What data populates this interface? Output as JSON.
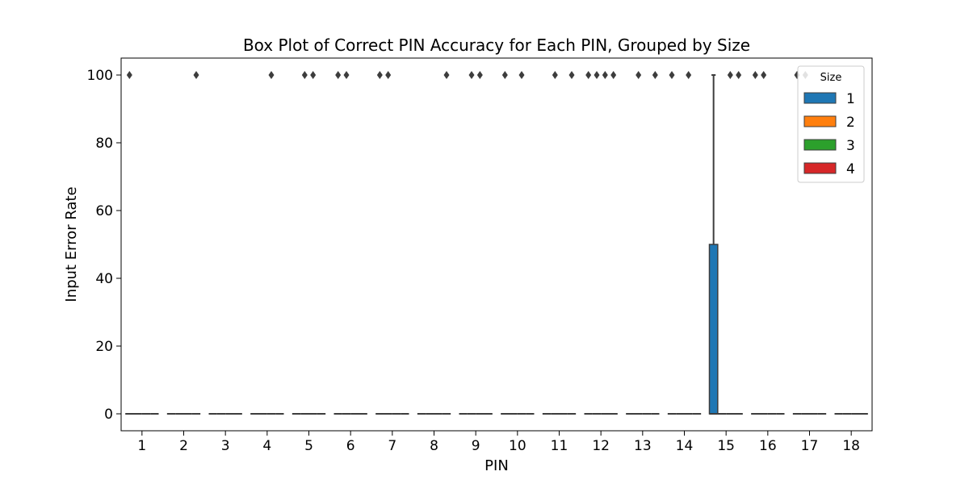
{
  "chart_data": {
    "type": "box",
    "title": "Box Plot of Correct PIN Accuracy for Each PIN, Grouped by Size",
    "xlabel": "PIN",
    "ylabel": "Input Error Rate",
    "categories": [
      "1",
      "2",
      "3",
      "4",
      "5",
      "6",
      "7",
      "8",
      "9",
      "10",
      "11",
      "12",
      "13",
      "14",
      "15",
      "16",
      "17",
      "18"
    ],
    "ylim": [
      -5,
      105
    ],
    "yticks": [
      0,
      20,
      40,
      60,
      80,
      100
    ],
    "legend": {
      "title": "Size",
      "position": "top-right",
      "entries": [
        {
          "label": "1",
          "color": "#1f77b4"
        },
        {
          "label": "2",
          "color": "#ff7f0e"
        },
        {
          "label": "3",
          "color": "#2ca02c"
        },
        {
          "label": "4",
          "color": "#d62728"
        }
      ]
    },
    "boxes": [
      {
        "pin": "15",
        "size": "1",
        "q1": 0,
        "median": 0,
        "q3": 50,
        "whisker_low": 0,
        "whisker_high": 100
      }
    ],
    "default_box": {
      "q1": 0,
      "median": 0,
      "q3": 0
    },
    "outliers": [
      {
        "pin": "1",
        "size": "1",
        "value": 100
      },
      {
        "pin": "2",
        "size": "4",
        "value": 100
      },
      {
        "pin": "4",
        "size": "3",
        "value": 100
      },
      {
        "pin": "5",
        "size": "2",
        "value": 100
      },
      {
        "pin": "5",
        "size": "3",
        "value": 100
      },
      {
        "pin": "6",
        "size": "1",
        "value": 100
      },
      {
        "pin": "6",
        "size": "2",
        "value": 100
      },
      {
        "pin": "7",
        "size": "1",
        "value": 100
      },
      {
        "pin": "7",
        "size": "2",
        "value": 100
      },
      {
        "pin": "8",
        "size": "4",
        "value": 100
      },
      {
        "pin": "9",
        "size": "2",
        "value": 100
      },
      {
        "pin": "9",
        "size": "3",
        "value": 100
      },
      {
        "pin": "10",
        "size": "1",
        "value": 100
      },
      {
        "pin": "10",
        "size": "3",
        "value": 100
      },
      {
        "pin": "11",
        "size": "2",
        "value": 100
      },
      {
        "pin": "11",
        "size": "4",
        "value": 100
      },
      {
        "pin": "12",
        "size": "1",
        "value": 100
      },
      {
        "pin": "12",
        "size": "2",
        "value": 100
      },
      {
        "pin": "12",
        "size": "3",
        "value": 100
      },
      {
        "pin": "12",
        "size": "4",
        "value": 100
      },
      {
        "pin": "13",
        "size": "2",
        "value": 100
      },
      {
        "pin": "13",
        "size": "4",
        "value": 100
      },
      {
        "pin": "14",
        "size": "1",
        "value": 100
      },
      {
        "pin": "14",
        "size": "3",
        "value": 100
      },
      {
        "pin": "15",
        "size": "3",
        "value": 100
      },
      {
        "pin": "15",
        "size": "4",
        "value": 100
      },
      {
        "pin": "16",
        "size": "1",
        "value": 100
      },
      {
        "pin": "16",
        "size": "2",
        "value": 100
      },
      {
        "pin": "17",
        "size": "1",
        "value": 100
      },
      {
        "pin": "17",
        "size": "2",
        "value": 100
      }
    ]
  }
}
